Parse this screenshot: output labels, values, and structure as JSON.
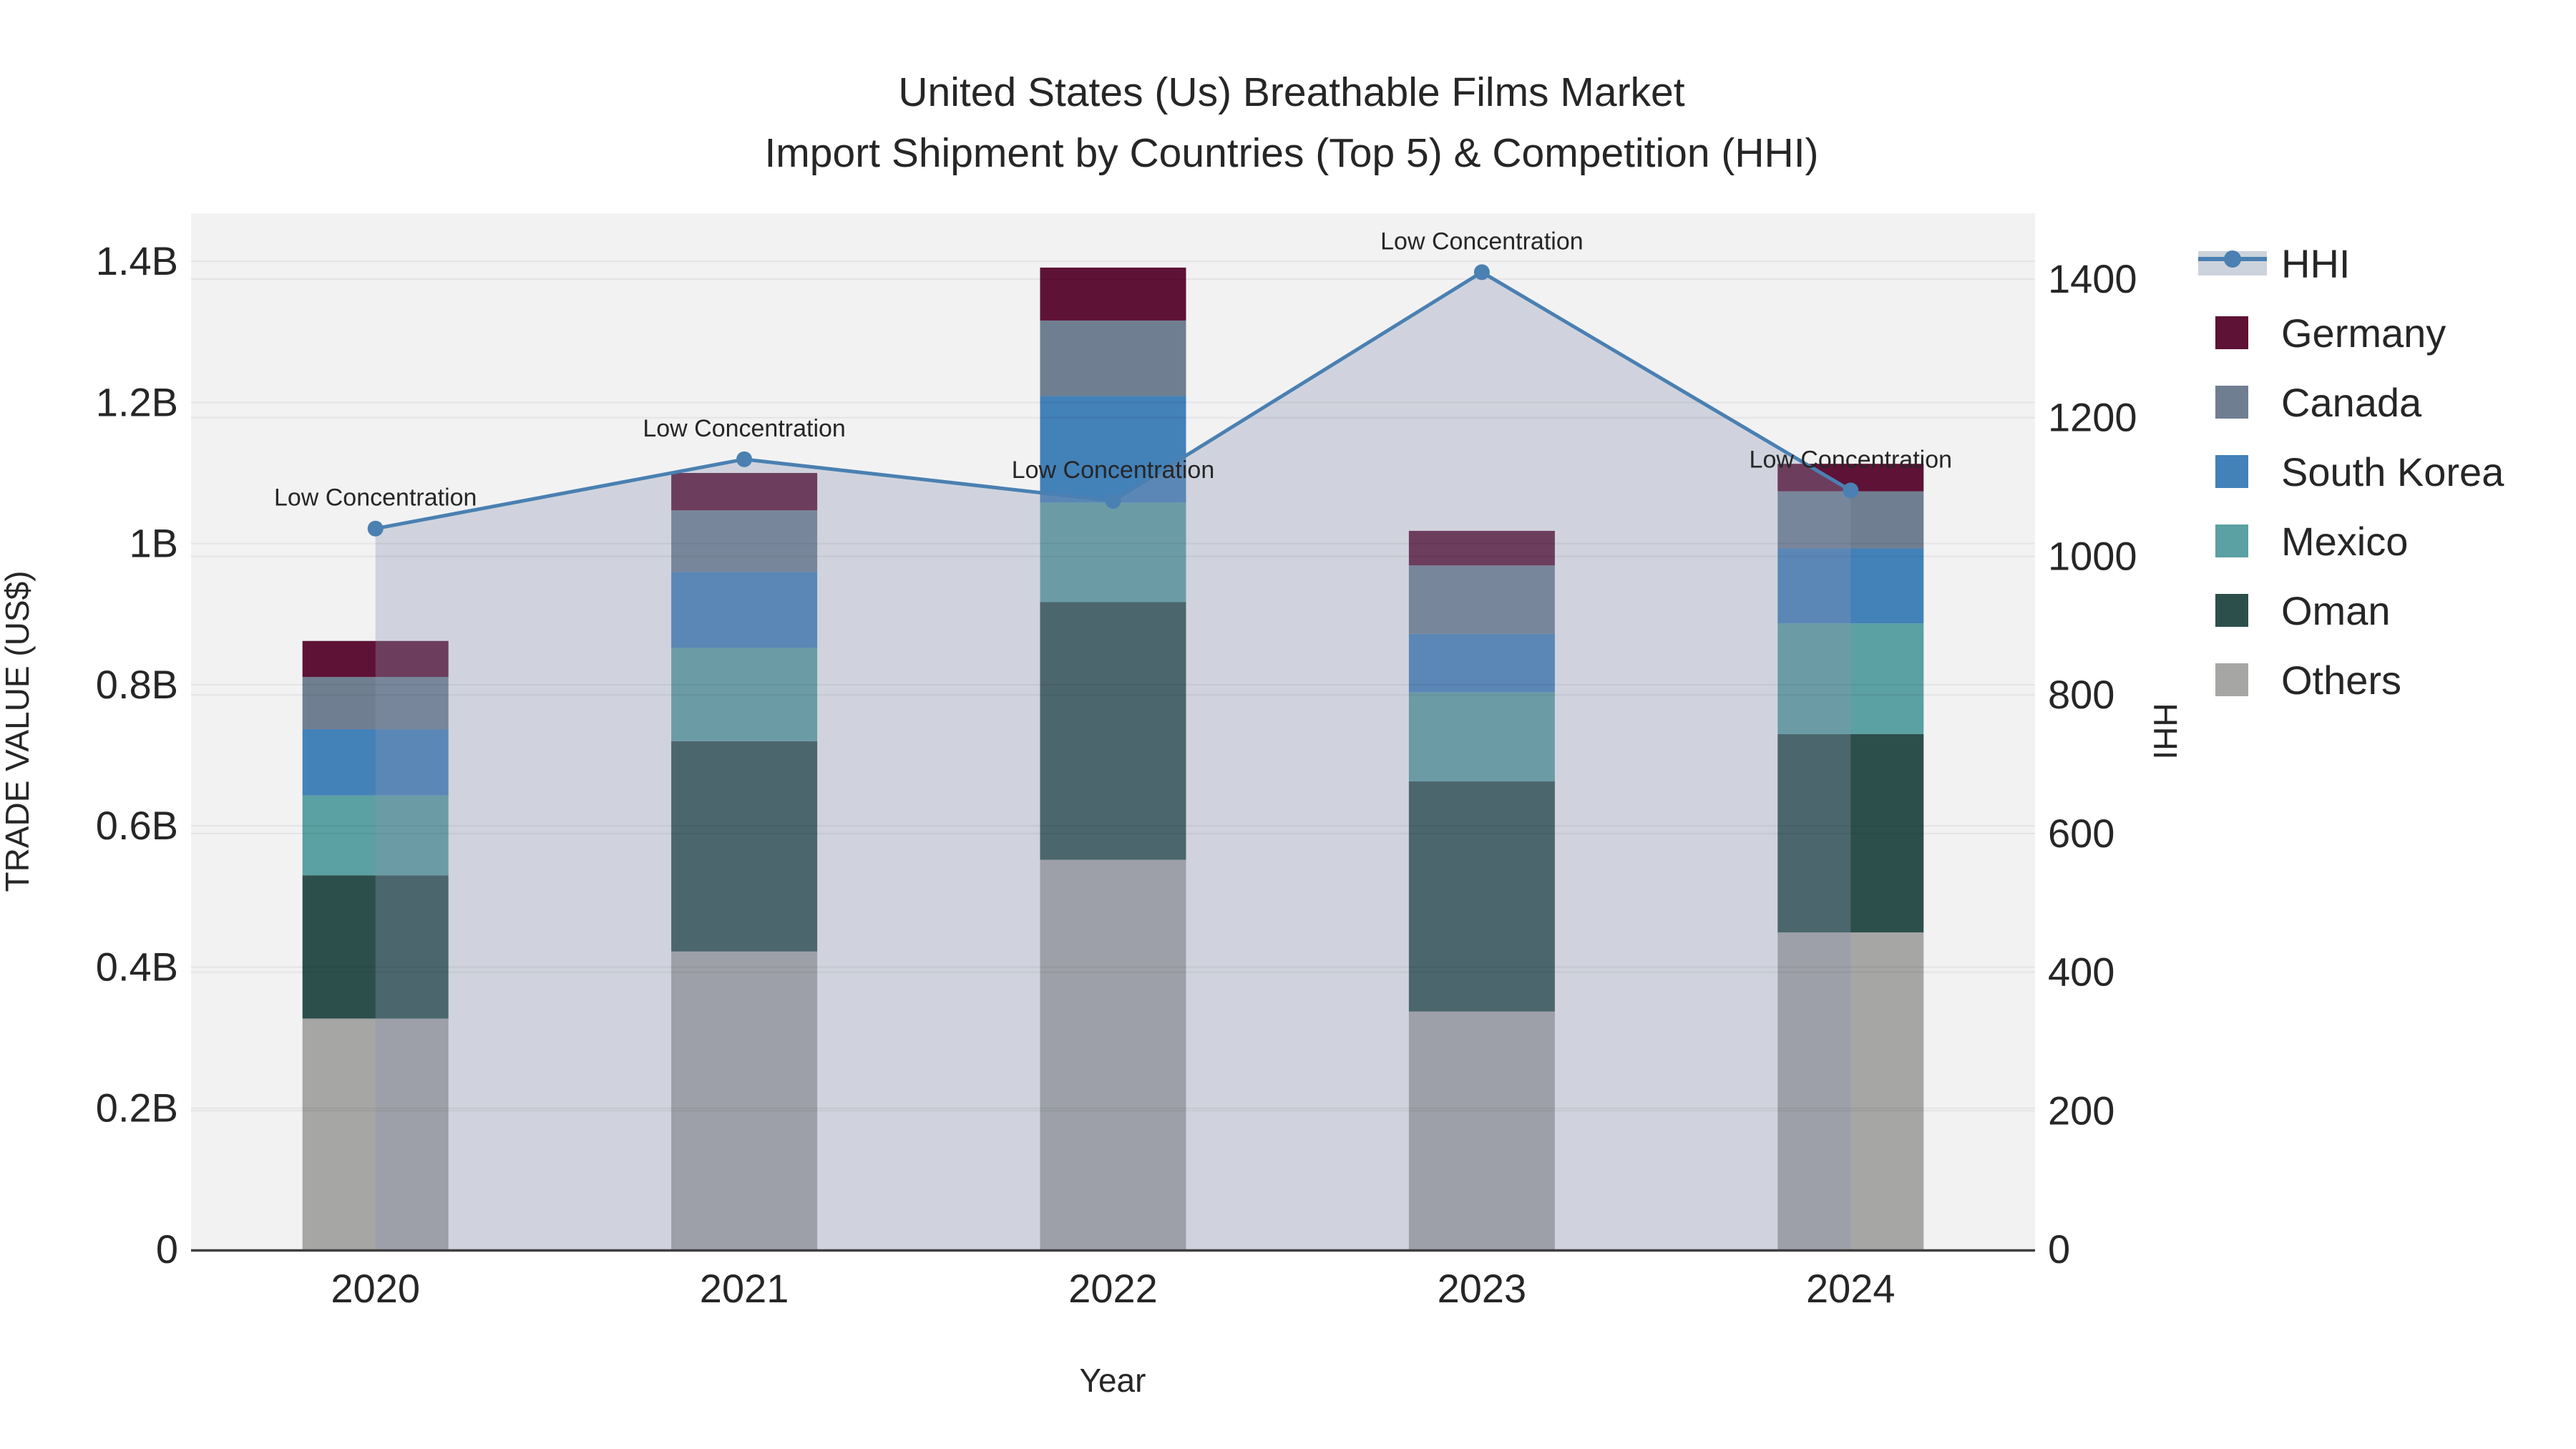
{
  "title": {
    "line1": "United States (Us) Breathable Films Market",
    "line2": "Import Shipment by Countries (Top 5) & Competition (HHI)"
  },
  "axes": {
    "x_title": "Year",
    "y_left_title": "TRADE VALUE (US$)",
    "y_right_title": "HHI",
    "y_left_ticks": [
      {
        "v": 0.0,
        "label": "0"
      },
      {
        "v": 0.2,
        "label": "0.2B"
      },
      {
        "v": 0.4,
        "label": "0.4B"
      },
      {
        "v": 0.6,
        "label": "0.6B"
      },
      {
        "v": 0.8,
        "label": "0.8B"
      },
      {
        "v": 1.0,
        "label": "1B"
      },
      {
        "v": 1.2,
        "label": "1.2B"
      },
      {
        "v": 1.4,
        "label": "1.4B"
      }
    ],
    "y_right_ticks": [
      {
        "v": 0,
        "label": "0"
      },
      {
        "v": 200,
        "label": "200"
      },
      {
        "v": 400,
        "label": "400"
      },
      {
        "v": 600,
        "label": "600"
      },
      {
        "v": 800,
        "label": "800"
      },
      {
        "v": 1000,
        "label": "1000"
      },
      {
        "v": 1200,
        "label": "1200"
      },
      {
        "v": 1400,
        "label": "1400"
      }
    ]
  },
  "legend": [
    {
      "label": "HHI",
      "type": "line",
      "color": "#4a80b2",
      "band_color": "#cdd3dc"
    },
    {
      "label": "Germany",
      "type": "swatch",
      "color": "#5e1236"
    },
    {
      "label": "Canada",
      "type": "swatch",
      "color": "#6f7f91"
    },
    {
      "label": "South Korea",
      "type": "swatch",
      "color": "#4381b9"
    },
    {
      "label": "Mexico",
      "type": "swatch",
      "color": "#5ba0a2"
    },
    {
      "label": "Oman",
      "type": "swatch",
      "color": "#2d4f4c"
    },
    {
      "label": "Others",
      "type": "swatch",
      "color": "#a6a6a4"
    }
  ],
  "chart_data": {
    "type": "bar+line",
    "unit": "billion USD (left axis), HHI index (right axis)",
    "categories": [
      "2020",
      "2021",
      "2022",
      "2023",
      "2024"
    ],
    "stack_series": [
      {
        "name": "Others",
        "color": "#a6a6a4",
        "values": [
          0.327,
          0.422,
          0.552,
          0.337,
          0.449
        ]
      },
      {
        "name": "Oman",
        "color": "#2d4f4c",
        "values": [
          0.203,
          0.298,
          0.365,
          0.326,
          0.281
        ]
      },
      {
        "name": "Mexico",
        "color": "#5ba0a2",
        "values": [
          0.113,
          0.132,
          0.141,
          0.126,
          0.157
        ]
      },
      {
        "name": "South Korea",
        "color": "#4381b9",
        "values": [
          0.094,
          0.108,
          0.151,
          0.083,
          0.106
        ]
      },
      {
        "name": "Canada",
        "color": "#6f7f91",
        "values": [
          0.074,
          0.087,
          0.107,
          0.097,
          0.081
        ]
      },
      {
        "name": "Germany",
        "color": "#5e1236",
        "values": [
          0.051,
          0.053,
          0.075,
          0.049,
          0.039
        ]
      }
    ],
    "line_series": {
      "name": "HHI",
      "color": "#4a80b2",
      "values": [
        1040,
        1140,
        1080,
        1410,
        1095
      ],
      "area_fill": "rgba(140,150,175,0.33)"
    },
    "annotations": [
      "Low Concentration",
      "Low Concentration",
      "Low Concentration",
      "Low Concentration",
      "Low Concentration"
    ],
    "ylim_left_billion": [
      0,
      1.468
    ],
    "ylim_right": [
      0,
      1495
    ],
    "plot_background": "#f2f2f3",
    "gridline_color": "rgba(0,0,0,0.055)",
    "axisline_color": "#3f3f3f",
    "legend_position": "right"
  }
}
